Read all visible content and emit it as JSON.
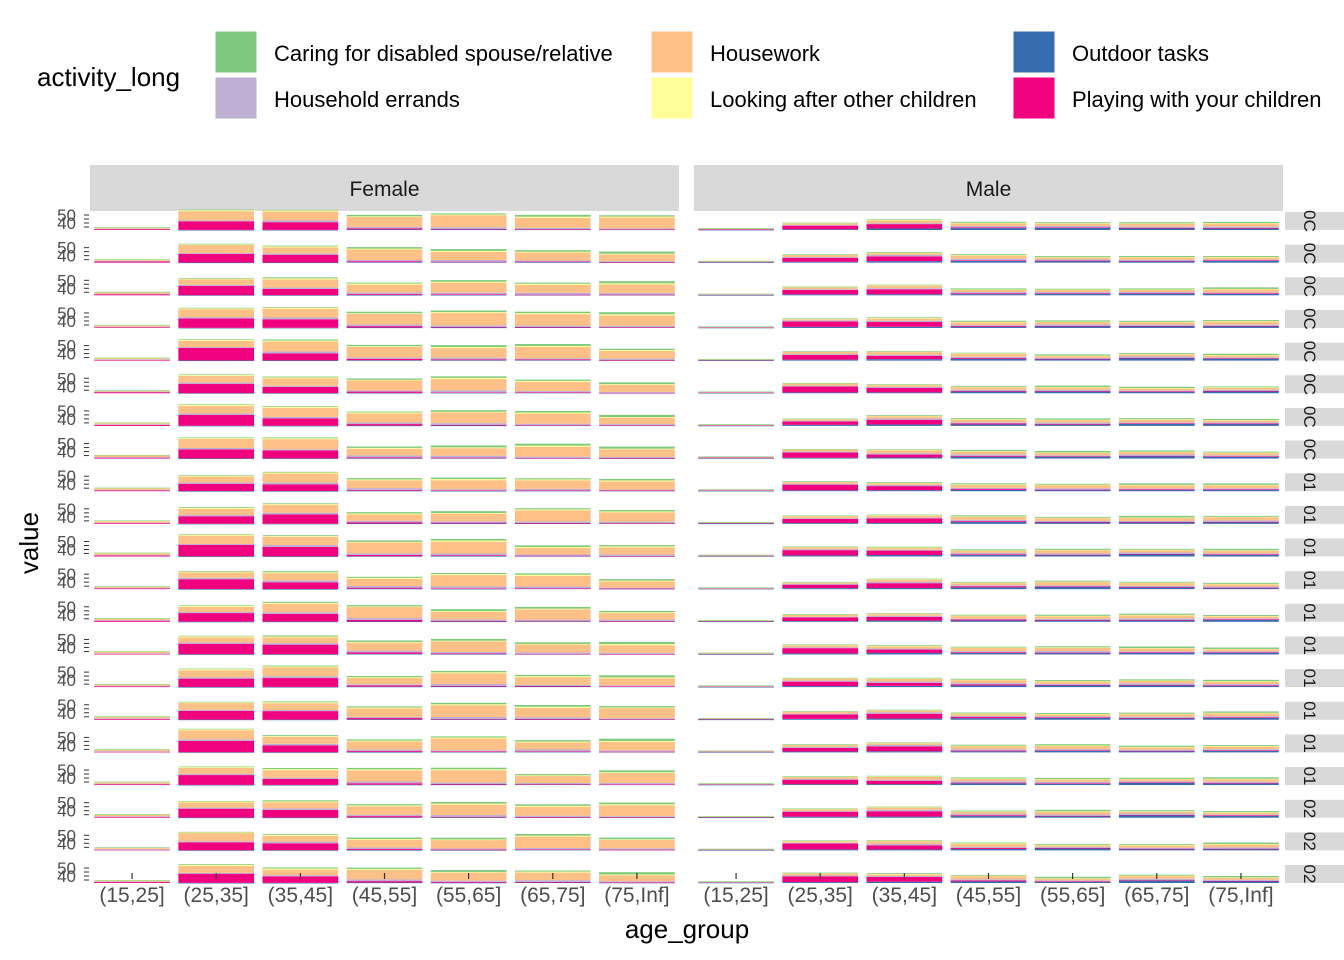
{
  "chart_data": {
    "type": "bar",
    "stacked": true,
    "xlabel": "age_group",
    "ylabel": "value",
    "categories": [
      "(15,25]",
      "(25,35]",
      "(35,45]",
      "(45,55]",
      "(55,65]",
      "(65,75]",
      "(75,Inf]"
    ],
    "columns": [
      "Female",
      "Male"
    ],
    "row_strip_labels": [
      "0C",
      "0C",
      "0C",
      "0C",
      "0C",
      "0C",
      "0C",
      "0C",
      "01",
      "01",
      "01",
      "01",
      "01",
      "01",
      "01",
      "01",
      "01",
      "01",
      "02",
      "02",
      "02"
    ],
    "y_tick_labels": [
      "50",
      "40"
    ],
    "ylim": [
      0,
      60
    ],
    "legend": {
      "title": "activity_long",
      "placement": "top",
      "items": [
        {
          "label": "Caring for disabled spouse/relative",
          "color": "#7fc97f"
        },
        {
          "label": "Household errands",
          "color": "#beaed4"
        },
        {
          "label": "Housework",
          "color": "#fdc086"
        },
        {
          "label": "Looking after other children",
          "color": "#ffff99"
        },
        {
          "label": "Outdoor tasks",
          "color": "#386cb0"
        },
        {
          "label": "Playing with your children",
          "color": "#f0027f"
        }
      ]
    },
    "series_order": [
      "Outdoor tasks",
      "Playing with your children",
      "Household errands",
      "Housework",
      "Looking after other children",
      "Caring for disabled spouse/relative"
    ],
    "female_profile": {
      "Outdoor tasks": [
        0,
        0.5,
        0.5,
        1.5,
        1.5,
        2,
        1.5
      ],
      "Playing with your children": [
        3,
        32,
        28,
        4,
        2,
        1,
        0.5
      ],
      "Household errands": [
        2,
        4,
        5,
        5,
        5,
        5,
        4
      ],
      "Housework": [
        4,
        24,
        26,
        30,
        32,
        30,
        28
      ],
      "Looking after other children": [
        1,
        3,
        3,
        3,
        3,
        3,
        3
      ],
      "Caring for disabled spouse/relative": [
        1,
        2,
        3,
        4,
        5,
        5,
        6
      ]
    },
    "male_profile": {
      "Outdoor tasks": [
        1,
        3,
        4,
        5,
        6,
        7,
        6
      ],
      "Playing with your children": [
        2,
        16,
        14,
        3,
        1,
        0.5,
        0.5
      ],
      "Household errands": [
        1,
        3,
        4,
        4,
        4,
        4,
        4
      ],
      "Housework": [
        1,
        6,
        8,
        9,
        9,
        9,
        9
      ],
      "Looking after other children": [
        0.5,
        1,
        1,
        1,
        1,
        1,
        1
      ],
      "Caring for disabled spouse/relative": [
        0.5,
        1,
        2,
        3,
        4,
        4,
        4
      ]
    },
    "grid": false
  }
}
